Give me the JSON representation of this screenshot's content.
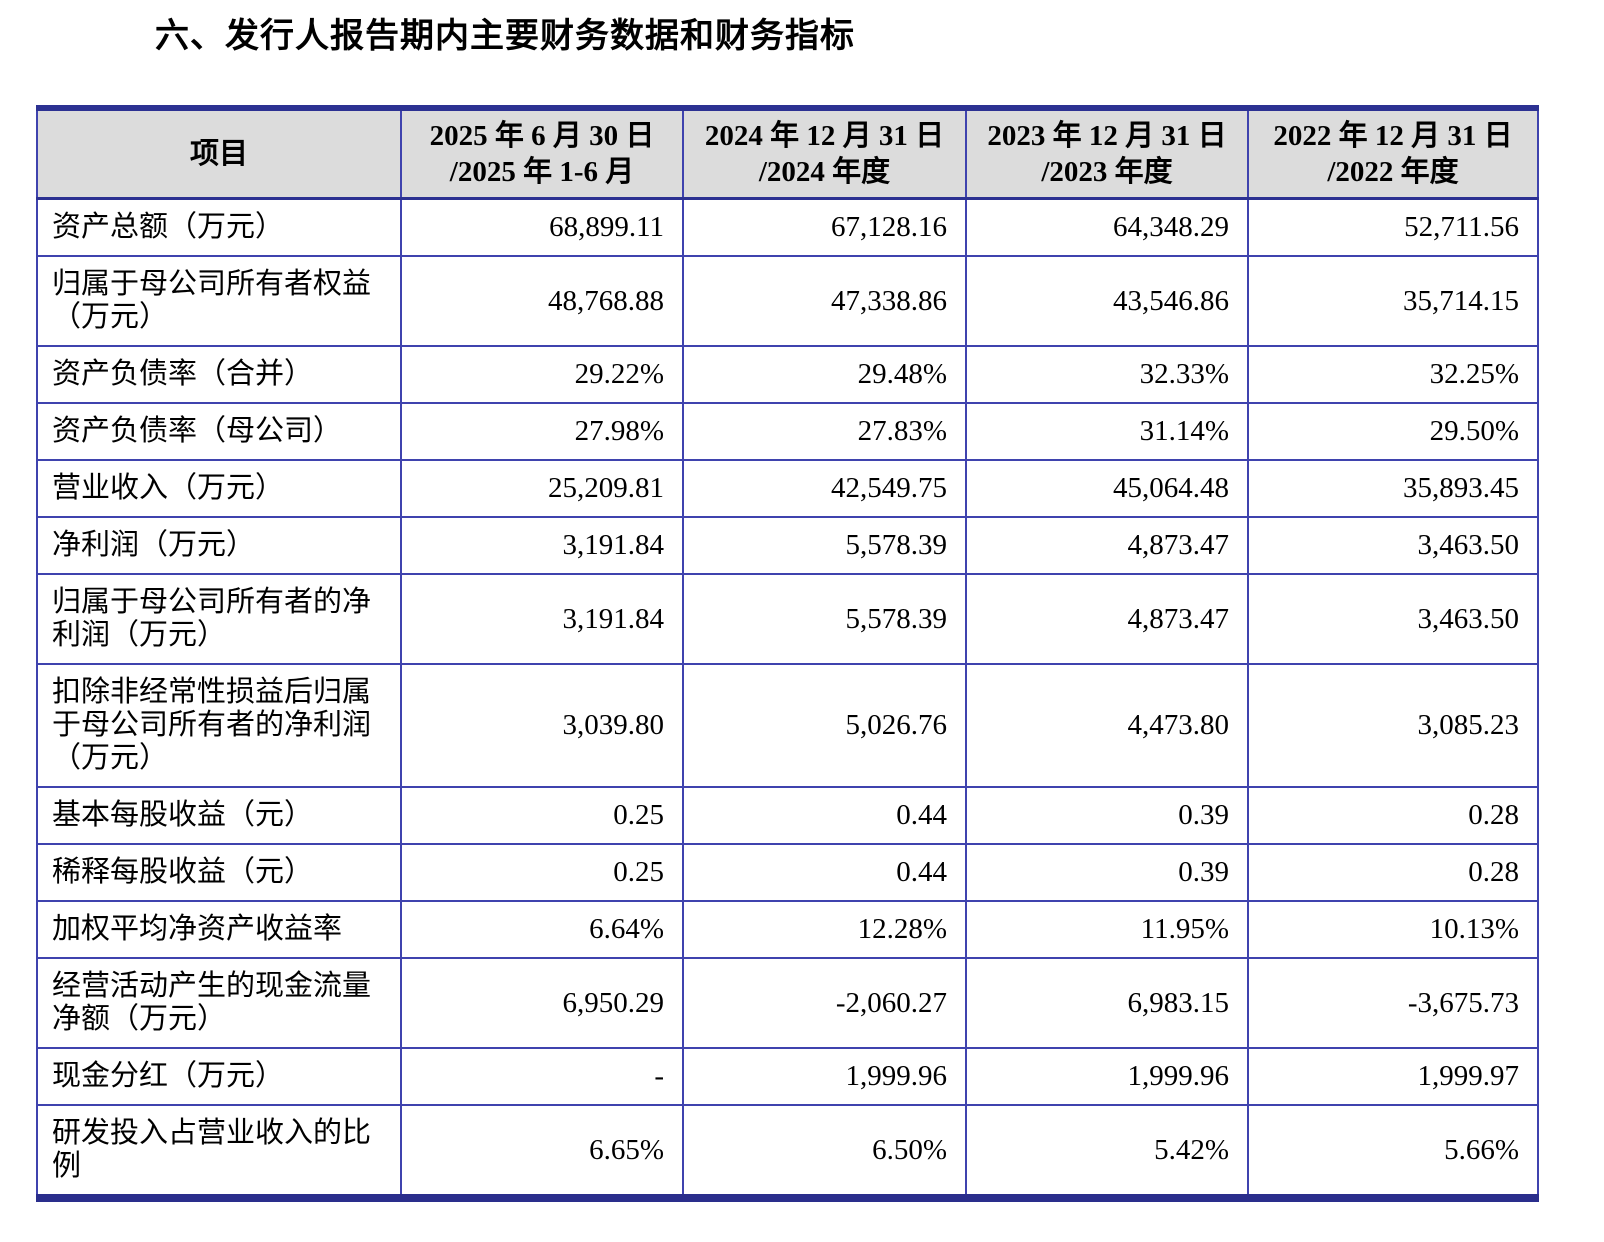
{
  "page": {
    "title": "六、发行人报告期内主要财务数据和财务指标"
  },
  "table": {
    "item_header": "项目",
    "period_headers": [
      {
        "line1": "2025 年 6 月 30 日",
        "line2": "/2025 年 1-6 月"
      },
      {
        "line1": "2024 年 12 月 31 日",
        "line2": "/2024 年度"
      },
      {
        "line1": "2023 年 12 月 31 日",
        "line2": "/2023 年度"
      },
      {
        "line1": "2022 年 12 月 31 日",
        "line2": "/2022 年度"
      }
    ],
    "rows": [
      {
        "label": "资产总额（万元）",
        "values": [
          "68,899.11",
          "67,128.16",
          "64,348.29",
          "52,711.56"
        ]
      },
      {
        "label": "归属于母公司所有者权益（万元）",
        "values": [
          "48,768.88",
          "47,338.86",
          "43,546.86",
          "35,714.15"
        ]
      },
      {
        "label": "资产负债率（合并）",
        "values": [
          "29.22%",
          "29.48%",
          "32.33%",
          "32.25%"
        ]
      },
      {
        "label": "资产负债率（母公司）",
        "values": [
          "27.98%",
          "27.83%",
          "31.14%",
          "29.50%"
        ]
      },
      {
        "label": "营业收入（万元）",
        "values": [
          "25,209.81",
          "42,549.75",
          "45,064.48",
          "35,893.45"
        ]
      },
      {
        "label": "净利润（万元）",
        "values": [
          "3,191.84",
          "5,578.39",
          "4,873.47",
          "3,463.50"
        ]
      },
      {
        "label": "归属于母公司所有者的净利润（万元）",
        "values": [
          "3,191.84",
          "5,578.39",
          "4,873.47",
          "3,463.50"
        ]
      },
      {
        "label": "扣除非经常性损益后归属于母公司所有者的净利润（万元）",
        "values": [
          "3,039.80",
          "5,026.76",
          "4,473.80",
          "3,085.23"
        ]
      },
      {
        "label": "基本每股收益（元）",
        "values": [
          "0.25",
          "0.44",
          "0.39",
          "0.28"
        ]
      },
      {
        "label": "稀释每股收益（元）",
        "values": [
          "0.25",
          "0.44",
          "0.39",
          "0.28"
        ]
      },
      {
        "label": "加权平均净资产收益率",
        "values": [
          "6.64%",
          "12.28%",
          "11.95%",
          "10.13%"
        ]
      },
      {
        "label": "经营活动产生的现金流量净额（万元）",
        "values": [
          "6,950.29",
          "-2,060.27",
          "6,983.15",
          "-3,675.73"
        ]
      },
      {
        "label": "现金分红（万元）",
        "values": [
          "-",
          "1,999.96",
          "1,999.96",
          "1,999.97"
        ]
      },
      {
        "label": "研发投入占营业收入的比例",
        "values": [
          "6.65%",
          "6.50%",
          "5.42%",
          "5.66%"
        ]
      }
    ]
  },
  "colors": {
    "outer_border": "#2C3192",
    "inner_border": "#3F43AE",
    "header_bg": "#DCDCDC",
    "text": "#000000",
    "page_bg": "#FFFFFF"
  }
}
